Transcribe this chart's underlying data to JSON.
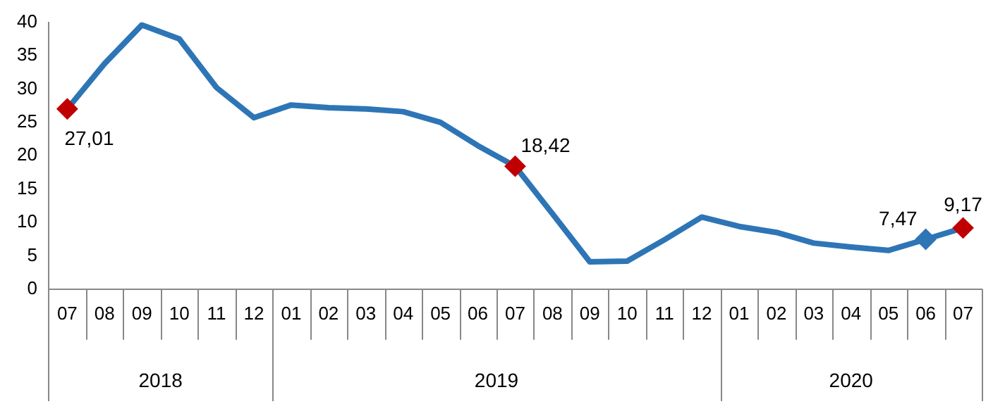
{
  "chart_data": {
    "type": "line",
    "categories": [
      "07",
      "08",
      "09",
      "10",
      "11",
      "12",
      "01",
      "02",
      "03",
      "04",
      "05",
      "06",
      "07",
      "08",
      "09",
      "10",
      "11",
      "12",
      "01",
      "02",
      "03",
      "04",
      "05",
      "06",
      "07"
    ],
    "series": [
      {
        "color": "#2e75b6",
        "values": [
          27.01,
          33.8,
          39.6,
          37.5,
          30.2,
          25.7,
          27.6,
          27.2,
          27.0,
          26.6,
          25.0,
          21.5,
          18.42,
          11.3,
          4.1,
          4.2,
          7.4,
          10.8,
          9.4,
          8.5,
          6.9,
          6.3,
          5.8,
          7.47,
          9.17
        ],
        "colors": [
          "#c00000",
          null,
          null,
          null,
          null,
          null,
          null,
          null,
          null,
          null,
          null,
          null,
          "#c00000",
          null,
          null,
          null,
          null,
          null,
          null,
          null,
          null,
          null,
          null,
          "#2e75b6",
          "#c00000"
        ],
        "value_labels": [
          "27,01",
          null,
          null,
          null,
          null,
          null,
          null,
          null,
          null,
          null,
          null,
          null,
          "18,42",
          null,
          null,
          null,
          null,
          null,
          null,
          null,
          null,
          null,
          null,
          "7,47",
          "9,17"
        ]
      }
    ],
    "annotations": [
      "2018",
      "2019",
      "2020"
    ],
    "ylim": [
      0,
      40
    ],
    "yticks": [
      0,
      5,
      10,
      15,
      20,
      25,
      30,
      35,
      40
    ],
    "grid": false,
    "legend": false,
    "line_style": "solid"
  }
}
